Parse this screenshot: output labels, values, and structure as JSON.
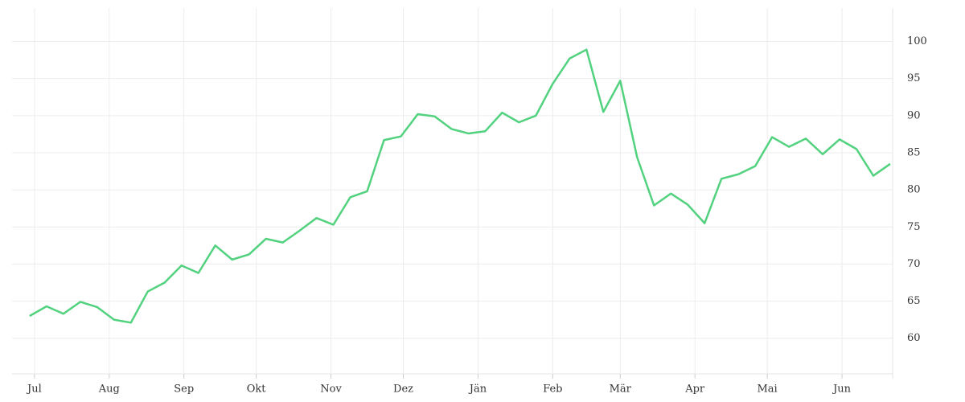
{
  "chart_data": {
    "type": "line",
    "x": [
      -2,
      5,
      12,
      19,
      26,
      33,
      40,
      47,
      54,
      61,
      68,
      75,
      82,
      89,
      96,
      103,
      110,
      117,
      124,
      131,
      138,
      145,
      152,
      159,
      166,
      173,
      180,
      187,
      194,
      201,
      208,
      215,
      222,
      229,
      236,
      243,
      250,
      257,
      264,
      271,
      278,
      285,
      292,
      299,
      306,
      313,
      320,
      327,
      334,
      341,
      348,
      355
    ],
    "series": [
      {
        "color": "#52d27f",
        "values": [
          63.0,
          64.3,
          63.3,
          64.9,
          64.2,
          62.5,
          62.1,
          66.3,
          67.5,
          69.8,
          68.8,
          72.5,
          70.6,
          71.3,
          73.4,
          72.9,
          74.5,
          76.2,
          75.3,
          79.0,
          79.8,
          86.7,
          87.2,
          90.2,
          89.9,
          88.2,
          87.6,
          87.9,
          90.4,
          89.1,
          90.0,
          94.3,
          97.7,
          98.9,
          90.5,
          94.7,
          84.4,
          77.9,
          79.5,
          78.0,
          75.5,
          81.5,
          82.1,
          83.2,
          87.1,
          85.8,
          86.9,
          84.8,
          86.8,
          85.5,
          81.9,
          83.5
        ]
      }
    ],
    "xlim": [
      -9.3,
      356
    ],
    "xticks": [
      {
        "value": 0,
        "label": "Jul"
      },
      {
        "value": 31,
        "label": "Aug"
      },
      {
        "value": 62,
        "label": "Sep"
      },
      {
        "value": 92,
        "label": "Okt"
      },
      {
        "value": 123,
        "label": "Nov"
      },
      {
        "value": 153,
        "label": "Dez"
      },
      {
        "value": 184,
        "label": "Jän"
      },
      {
        "value": 215,
        "label": "Feb"
      },
      {
        "value": 243,
        "label": "Mär"
      },
      {
        "value": 274,
        "label": "Apr"
      },
      {
        "value": 304,
        "label": "Mai"
      },
      {
        "value": 335,
        "label": "Jun"
      }
    ],
    "ylim": [
      55.2,
      104.5
    ],
    "yticks": [
      60,
      65,
      70,
      75,
      80,
      85,
      90,
      95,
      100
    ],
    "grid": true
  }
}
